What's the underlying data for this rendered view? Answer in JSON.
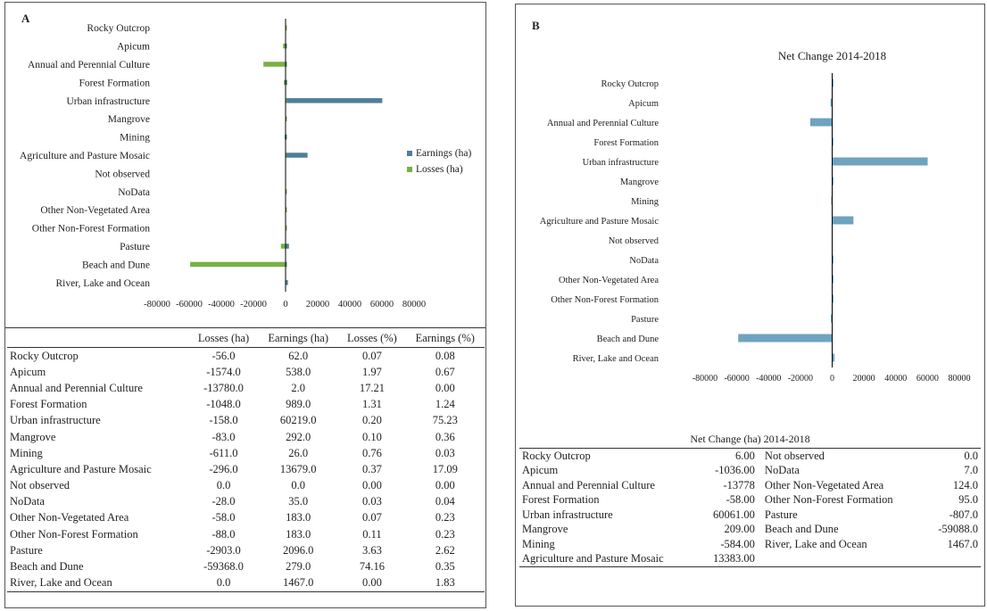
{
  "panel_a": {
    "letter": "A"
  },
  "panel_b": {
    "letter": "B"
  },
  "colors": {
    "earnings": "#4f7f99",
    "losses": "#79b044",
    "net": "#6fa3bf",
    "axis": "#000000"
  },
  "chart_data": [
    {
      "type": "bar",
      "orientation": "horizontal",
      "panel": "A",
      "categories": [
        "Rocky Outcrop",
        "Apicum",
        "Annual and Perennial Culture",
        "Forest Formation",
        "Urban infrastructure",
        "Mangrove",
        "Mining",
        "Agriculture and Pasture Mosaic",
        "Not observed",
        "NoData",
        "Other Non-Vegetated Area",
        "Other Non-Forest Formation",
        "Pasture",
        "Beach and Dune",
        "River, Lake and Ocean"
      ],
      "series": [
        {
          "name": "Earnings (ha)",
          "values": [
            62.0,
            538.0,
            2.0,
            989.0,
            60219.0,
            292.0,
            26.0,
            13679.0,
            0.0,
            35.0,
            183.0,
            183.0,
            2096.0,
            279.0,
            1467.0
          ]
        },
        {
          "name": "Losses (ha)",
          "values": [
            -56.0,
            -1574.0,
            -13780.0,
            -1048.0,
            -158.0,
            -83.0,
            -611.0,
            -296.0,
            0.0,
            -28.0,
            -58.0,
            -88.0,
            -2903.0,
            -59368.0,
            0.0
          ]
        }
      ],
      "xlim": [
        -80000,
        80000
      ],
      "x_ticks": [
        "-80000",
        "-60000",
        "-40000",
        "-20000",
        "0",
        "20000",
        "40000",
        "60000",
        "80000"
      ],
      "legend_position": "right"
    },
    {
      "type": "bar",
      "orientation": "horizontal",
      "panel": "B",
      "title": "Net Change 2014-2018",
      "categories": [
        "Rocky Outcrop",
        "Apicum",
        "Annual and Perennial Culture",
        "Forest Formation",
        "Urban infrastructure",
        "Mangrove",
        "Mining",
        "Agriculture and Pasture Mosaic",
        "Not observed",
        "NoData",
        "Other Non-Vegetated Area",
        "Other Non-Forest Formation",
        "Pasture",
        "Beach and Dune",
        "River, Lake and Ocean"
      ],
      "series": [
        {
          "values": [
            6.0,
            -1036.0,
            -13778.0,
            -58.0,
            60061.0,
            209.0,
            -584.0,
            13383.0,
            0.0,
            7.0,
            124.0,
            95.0,
            -807.0,
            -59088.0,
            1467.0
          ]
        }
      ],
      "xlim": [
        -80000,
        80000
      ],
      "x_ticks": [
        "-80000",
        "-60000",
        "-40000",
        "-20000",
        "0",
        "20000",
        "40000",
        "60000",
        "80000"
      ]
    }
  ],
  "table_a": {
    "headers": [
      "",
      "Losses (ha)",
      "Earnings (ha)",
      "Losses (%)",
      "Earnings (%)"
    ],
    "rows": [
      [
        "Rocky Outcrop",
        "-56.0",
        "62.0",
        "0.07",
        "0.08"
      ],
      [
        "Apicum",
        "-1574.0",
        "538.0",
        "1.97",
        "0.67"
      ],
      [
        "Annual and Perennial Culture",
        "-13780.0",
        "2.0",
        "17.21",
        "0.00"
      ],
      [
        "Forest Formation",
        "-1048.0",
        "989.0",
        "1.31",
        "1.24"
      ],
      [
        "Urban infrastructure",
        "-158.0",
        "60219.0",
        "0.20",
        "75.23"
      ],
      [
        "Mangrove",
        "-83.0",
        "292.0",
        "0.10",
        "0.36"
      ],
      [
        "Mining",
        "-611.0",
        "26.0",
        "0.76",
        "0.03"
      ],
      [
        "Agriculture and Pasture Mosaic",
        "-296.0",
        "13679.0",
        "0.37",
        "17.09"
      ],
      [
        "Not observed",
        "0.0",
        "0.0",
        "0.00",
        "0.00"
      ],
      [
        "NoData",
        "-28.0",
        "35.0",
        "0.03",
        "0.04"
      ],
      [
        "Other Non-Vegetated Area",
        "-58.0",
        "183.0",
        "0.07",
        "0.23"
      ],
      [
        "Other Non-Forest Formation",
        "-88.0",
        "183.0",
        "0.11",
        "0.23"
      ],
      [
        "Pasture",
        "-2903.0",
        "2096.0",
        "3.63",
        "2.62"
      ],
      [
        "Beach and Dune",
        "-59368.0",
        "279.0",
        "74.16",
        "0.35"
      ],
      [
        "River, Lake and Ocean",
        "0.0",
        "1467.0",
        "0.00",
        "1.83"
      ]
    ]
  },
  "table_b": {
    "caption": "Net Change (ha) 2014-2018",
    "rows": [
      [
        "Rocky Outcrop",
        "6.00",
        "Not observed",
        "0.0"
      ],
      [
        "Apicum",
        "-1036.00",
        "NoData",
        "7.0"
      ],
      [
        "Annual and Perennial Culture",
        "-13778",
        "Other Non-Vegetated Area",
        "124.0"
      ],
      [
        "Forest Formation",
        "-58.00",
        "Other Non-Forest Formation",
        "95.0"
      ],
      [
        "Urban infrastructure",
        "60061.00",
        "Pasture",
        "-807.0"
      ],
      [
        "Mangrove",
        "209.00",
        "Beach and Dune",
        "-59088.0"
      ],
      [
        "Mining",
        "-584.00",
        "River, Lake and Ocean",
        "1467.0"
      ],
      [
        "Agriculture and Pasture Mosaic",
        "13383.00",
        "",
        ""
      ]
    ]
  }
}
